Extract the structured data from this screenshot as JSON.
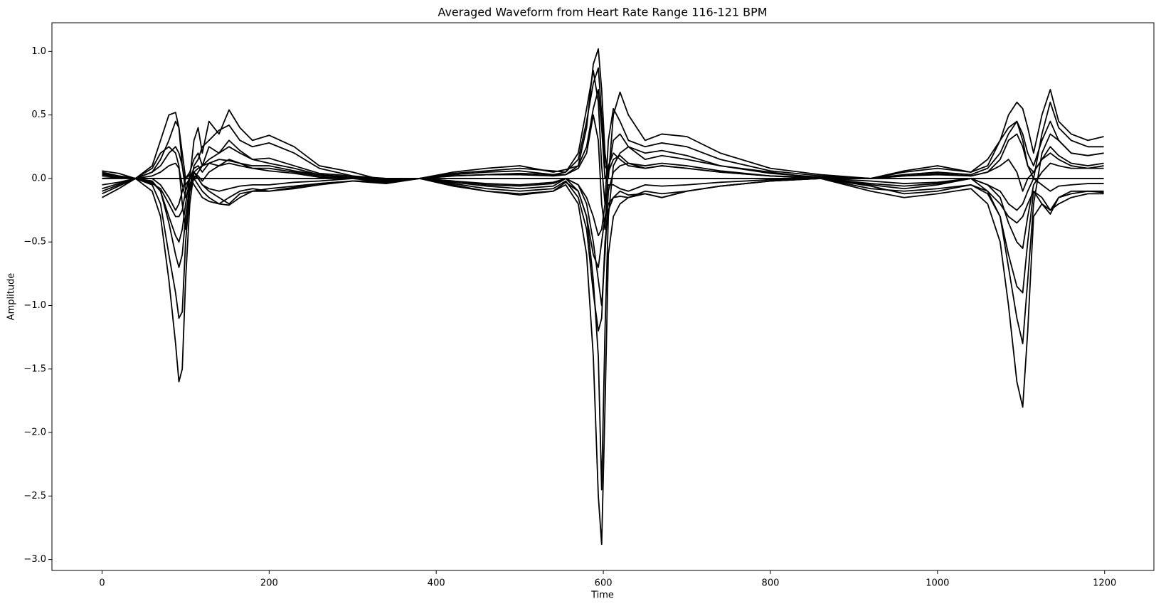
{
  "chart_data": {
    "type": "line",
    "title": "Averaged Waveform from Heart Rate Range 116-121 BPM",
    "x_label": "Time",
    "y_label": "Amplitude",
    "color": "#000000",
    "xlim": [
      -60,
      1259
    ],
    "ylim": [
      -3.086,
      1.226
    ],
    "xticks": [
      0,
      200,
      400,
      600,
      800,
      1000,
      1200
    ],
    "yticks": [
      {
        "value": -3,
        "label": "−3.0"
      },
      {
        "value": -2.5,
        "label": "−2.5"
      },
      {
        "value": -2,
        "label": "−2.0"
      },
      {
        "value": -1.5,
        "label": "−1.5"
      },
      {
        "value": -1,
        "label": "−1.0"
      },
      {
        "value": -0.5,
        "label": "−0.5"
      },
      {
        "value": 0,
        "label": "0.0"
      },
      {
        "value": 0.5,
        "label": "0.5"
      },
      {
        "value": 1,
        "label": "1.0"
      }
    ],
    "x": [
      0,
      20,
      40,
      60,
      70,
      80,
      88,
      92,
      96,
      100,
      105,
      110,
      115,
      120,
      128,
      140,
      152,
      165,
      180,
      200,
      230,
      260,
      300,
      340,
      380,
      420,
      460,
      500,
      540,
      555,
      570,
      580,
      588,
      594,
      598,
      602,
      606,
      612,
      620,
      630,
      650,
      670,
      700,
      740,
      800,
      860,
      920,
      960,
      1000,
      1040,
      1060,
      1075,
      1085,
      1095,
      1102,
      1108,
      1115,
      1125,
      1135,
      1145,
      1160,
      1180,
      1199
    ],
    "series": [
      {
        "values": [
          -0.15,
          -0.08,
          0,
          -0.1,
          -0.3,
          -0.8,
          -1.3,
          -1.6,
          -1.5,
          -0.8,
          -0.2,
          0.05,
          0,
          -0.05,
          -0.1,
          -0.15,
          -0.2,
          -0.12,
          -0.1,
          -0.08,
          -0.06,
          -0.04,
          -0.02,
          -0.03,
          0,
          -0.05,
          -0.1,
          -0.12,
          -0.1,
          -0.05,
          -0.2,
          -0.6,
          -1.4,
          -2.5,
          -2.88,
          -1.8,
          -0.6,
          -0.3,
          -0.2,
          -0.15,
          -0.12,
          -0.15,
          -0.1,
          -0.06,
          -0.02,
          0,
          -0.1,
          -0.15,
          -0.12,
          -0.08,
          -0.2,
          -0.5,
          -1.0,
          -1.6,
          -1.8,
          -1.2,
          -0.3,
          -0.2,
          -0.25,
          -0.2,
          -0.15,
          -0.12,
          -0.12
        ]
      },
      {
        "values": [
          0.05,
          0.02,
          0,
          0.1,
          0.3,
          0.5,
          0.52,
          0.4,
          0.1,
          -0.1,
          0,
          0.3,
          0.4,
          0.2,
          0.45,
          0.35,
          0.54,
          0.4,
          0.3,
          0.34,
          0.25,
          0.1,
          0.05,
          -0.02,
          0,
          0.05,
          0.08,
          0.1,
          0.05,
          0.07,
          0.1,
          0.4,
          0.9,
          1.02,
          0.7,
          0.2,
          0,
          0.5,
          0.68,
          0.5,
          0.3,
          0.35,
          0.33,
          0.2,
          0.08,
          0.03,
          0,
          0.05,
          0.08,
          0.05,
          0.1,
          0.3,
          0.5,
          0.6,
          0.55,
          0.4,
          0.2,
          0.5,
          0.7,
          0.45,
          0.35,
          0.3,
          0.33
        ]
      },
      {
        "values": [
          -0.1,
          -0.05,
          0,
          -0.05,
          -0.2,
          -0.6,
          -0.9,
          -1.1,
          -1.05,
          -0.5,
          -0.1,
          0,
          0.05,
          0.1,
          0.15,
          0.2,
          0.25,
          0.2,
          0.15,
          0.12,
          0.08,
          0.03,
          0,
          -0.03,
          0,
          -0.02,
          -0.05,
          -0.06,
          -0.04,
          0,
          -0.1,
          -0.3,
          -0.8,
          -1.4,
          -2.45,
          -1.2,
          -0.3,
          0.1,
          0.2,
          0.25,
          0.2,
          0.22,
          0.18,
          0.1,
          0.05,
          0,
          -0.05,
          -0.08,
          -0.05,
          0,
          -0.1,
          -0.3,
          -0.7,
          -1.1,
          -1.3,
          -0.8,
          -0.2,
          0.2,
          0.35,
          0.3,
          0.2,
          0.18,
          0.2
        ]
      },
      {
        "values": [
          0.06,
          0.04,
          0,
          0.08,
          0.2,
          0.25,
          0.2,
          0.1,
          -0.2,
          -0.4,
          -0.1,
          0.1,
          0.15,
          0.25,
          0.3,
          0.38,
          0.42,
          0.3,
          0.25,
          0.28,
          0.2,
          0.08,
          0.02,
          -0.03,
          0,
          0.04,
          0.06,
          0.08,
          0.06,
          0.05,
          0.2,
          0.55,
          0.85,
          0.6,
          0.1,
          -0.2,
          0.3,
          0.55,
          0.45,
          0.3,
          0.25,
          0.28,
          0.25,
          0.15,
          0.06,
          0.02,
          0,
          0.06,
          0.1,
          0.05,
          0.15,
          0.3,
          0.4,
          0.45,
          0.3,
          0.1,
          0,
          0.35,
          0.6,
          0.4,
          0.3,
          0.25,
          0.25
        ]
      },
      {
        "values": [
          -0.05,
          -0.03,
          0,
          -0.03,
          -0.1,
          -0.35,
          -0.6,
          -0.7,
          -0.6,
          -0.3,
          -0.05,
          0,
          -0.05,
          -0.1,
          -0.15,
          -0.2,
          -0.15,
          -0.1,
          -0.08,
          -0.1,
          -0.07,
          -0.04,
          -0.02,
          -0.02,
          0,
          -0.04,
          -0.08,
          -0.1,
          -0.08,
          -0.02,
          -0.15,
          -0.4,
          -0.9,
          -1.2,
          -1.1,
          -0.5,
          -0.25,
          -0.15,
          -0.1,
          -0.13,
          -0.12,
          -0.15,
          -0.1,
          -0.06,
          -0.02,
          0,
          -0.06,
          -0.12,
          -0.1,
          -0.05,
          -0.12,
          -0.3,
          -0.6,
          -0.85,
          -0.9,
          -0.5,
          -0.1,
          -0.15,
          -0.25,
          -0.15,
          -0.1,
          -0.1,
          -0.1
        ]
      },
      {
        "values": [
          0,
          0.01,
          0,
          0.05,
          0.15,
          0.3,
          0.45,
          0.4,
          0.2,
          0,
          0.05,
          0.15,
          0.2,
          0.1,
          0.25,
          0.2,
          0.3,
          0.22,
          0.15,
          0.16,
          0.1,
          0.04,
          0.02,
          0,
          0,
          0.03,
          0.05,
          0.06,
          0.03,
          0.05,
          0.15,
          0.45,
          0.75,
          0.87,
          0.5,
          0.1,
          0.05,
          0.3,
          0.35,
          0.25,
          0.15,
          0.18,
          0.15,
          0.1,
          0.04,
          0.01,
          0,
          0.03,
          0.05,
          0.03,
          0.08,
          0.2,
          0.35,
          0.45,
          0.35,
          0.2,
          0.1,
          0.3,
          0.45,
          0.3,
          0.2,
          0.18,
          0.2
        ]
      },
      {
        "values": [
          -0.08,
          -0.04,
          0,
          -0.02,
          -0.1,
          -0.3,
          -0.45,
          -0.5,
          -0.4,
          -0.2,
          0,
          0.05,
          0.02,
          -0.02,
          0.05,
          0.1,
          0.12,
          0.1,
          0.08,
          0.06,
          0.04,
          0.01,
          0,
          -0.02,
          0,
          -0.03,
          -0.06,
          -0.08,
          -0.06,
          0,
          -0.05,
          -0.2,
          -0.5,
          -0.8,
          -1.0,
          -0.6,
          -0.1,
          0.05,
          0.1,
          0.12,
          0.1,
          0.12,
          0.1,
          0.06,
          0.02,
          0,
          -0.04,
          -0.06,
          -0.04,
          0,
          -0.05,
          -0.15,
          -0.35,
          -0.5,
          -0.55,
          -0.3,
          -0.05,
          0.05,
          0.12,
          0.1,
          0.08,
          0.08,
          0.1
        ]
      },
      {
        "values": [
          0.03,
          0.02,
          0,
          0.02,
          0.05,
          0.1,
          0.12,
          0.08,
          -0.05,
          -0.15,
          -0.05,
          0.05,
          0.08,
          0.1,
          0.12,
          0.15,
          0.14,
          0.12,
          0.1,
          0.1,
          0.06,
          0.03,
          0.01,
          0,
          0,
          0.02,
          0.03,
          0.04,
          0.03,
          0.03,
          0.08,
          0.2,
          0.5,
          0.3,
          -0.2,
          -0.4,
          0.1,
          0.2,
          0.15,
          0.1,
          0.08,
          0.1,
          0.08,
          0.05,
          0.02,
          0.01,
          0,
          0.02,
          0.03,
          0.02,
          0.05,
          0.1,
          0.15,
          0.05,
          -0.1,
          0,
          0.05,
          0.15,
          0.2,
          0.15,
          0.1,
          0.08,
          0.08
        ]
      },
      {
        "values": [
          -0.12,
          -0.06,
          0,
          -0.04,
          -0.08,
          -0.2,
          -0.3,
          -0.3,
          -0.25,
          -0.1,
          0.02,
          -0.05,
          -0.1,
          -0.15,
          -0.18,
          -0.2,
          -0.21,
          -0.15,
          -0.1,
          -0.1,
          -0.08,
          -0.05,
          -0.02,
          -0.04,
          0,
          -0.06,
          -0.1,
          -0.13,
          -0.1,
          -0.03,
          -0.1,
          -0.3,
          -0.6,
          -0.7,
          -0.5,
          -0.3,
          -0.2,
          -0.15,
          -0.14,
          -0.15,
          -0.1,
          -0.12,
          -0.1,
          -0.06,
          -0.02,
          0,
          -0.08,
          -0.1,
          -0.08,
          -0.05,
          -0.1,
          -0.2,
          -0.3,
          -0.35,
          -0.3,
          -0.2,
          -0.1,
          -0.2,
          -0.28,
          -0.15,
          -0.12,
          -0.1,
          -0.11
        ]
      },
      {
        "values": [
          0,
          0,
          0,
          0,
          0,
          0,
          0,
          0,
          0,
          0,
          0,
          0,
          0,
          0,
          0,
          0,
          0,
          0,
          0,
          0,
          0,
          0,
          0,
          0,
          0,
          0,
          0,
          0,
          0,
          0,
          0,
          0,
          0,
          0,
          0,
          0,
          0,
          0,
          0,
          0,
          0,
          0,
          0,
          0,
          0,
          0,
          0,
          0,
          0,
          0,
          0,
          0,
          0,
          0,
          0,
          0,
          0,
          0,
          0,
          0,
          0,
          0,
          0
        ]
      },
      {
        "values": [
          0.02,
          0.01,
          0,
          0,
          -0.05,
          -0.15,
          -0.25,
          -0.2,
          -0.1,
          0,
          0.03,
          0.02,
          0,
          -0.05,
          -0.08,
          -0.1,
          -0.08,
          -0.06,
          -0.05,
          -0.05,
          -0.03,
          -0.02,
          0,
          -0.01,
          0,
          -0.02,
          -0.04,
          -0.05,
          -0.03,
          0,
          -0.05,
          -0.15,
          -0.3,
          -0.45,
          -0.4,
          -0.2,
          -0.05,
          -0.05,
          -0.08,
          -0.1,
          -0.05,
          -0.06,
          -0.05,
          -0.03,
          -0.01,
          0,
          -0.02,
          -0.04,
          -0.03,
          0,
          -0.05,
          -0.1,
          -0.2,
          -0.25,
          -0.2,
          -0.1,
          0,
          -0.05,
          -0.1,
          -0.06,
          -0.05,
          -0.04,
          -0.04
        ]
      },
      {
        "values": [
          0.04,
          0.02,
          0,
          0.05,
          0.1,
          0.2,
          0.25,
          0.2,
          0.1,
          -0.05,
          0,
          0.08,
          0.1,
          0.05,
          0.12,
          0.1,
          0.15,
          0.12,
          0.08,
          0.08,
          0.05,
          0.02,
          0.01,
          -0.01,
          0,
          0.02,
          0.03,
          0.03,
          0.02,
          0.03,
          0.1,
          0.25,
          0.55,
          0.7,
          0.4,
          0,
          0.05,
          0.15,
          0.18,
          0.12,
          0.08,
          0.1,
          0.08,
          0.05,
          0.02,
          0,
          0,
          0.02,
          0.04,
          0.02,
          0.05,
          0.15,
          0.3,
          0.35,
          0.25,
          0.1,
          0.05,
          0.15,
          0.25,
          0.18,
          0.12,
          0.1,
          0.12
        ]
      }
    ]
  }
}
